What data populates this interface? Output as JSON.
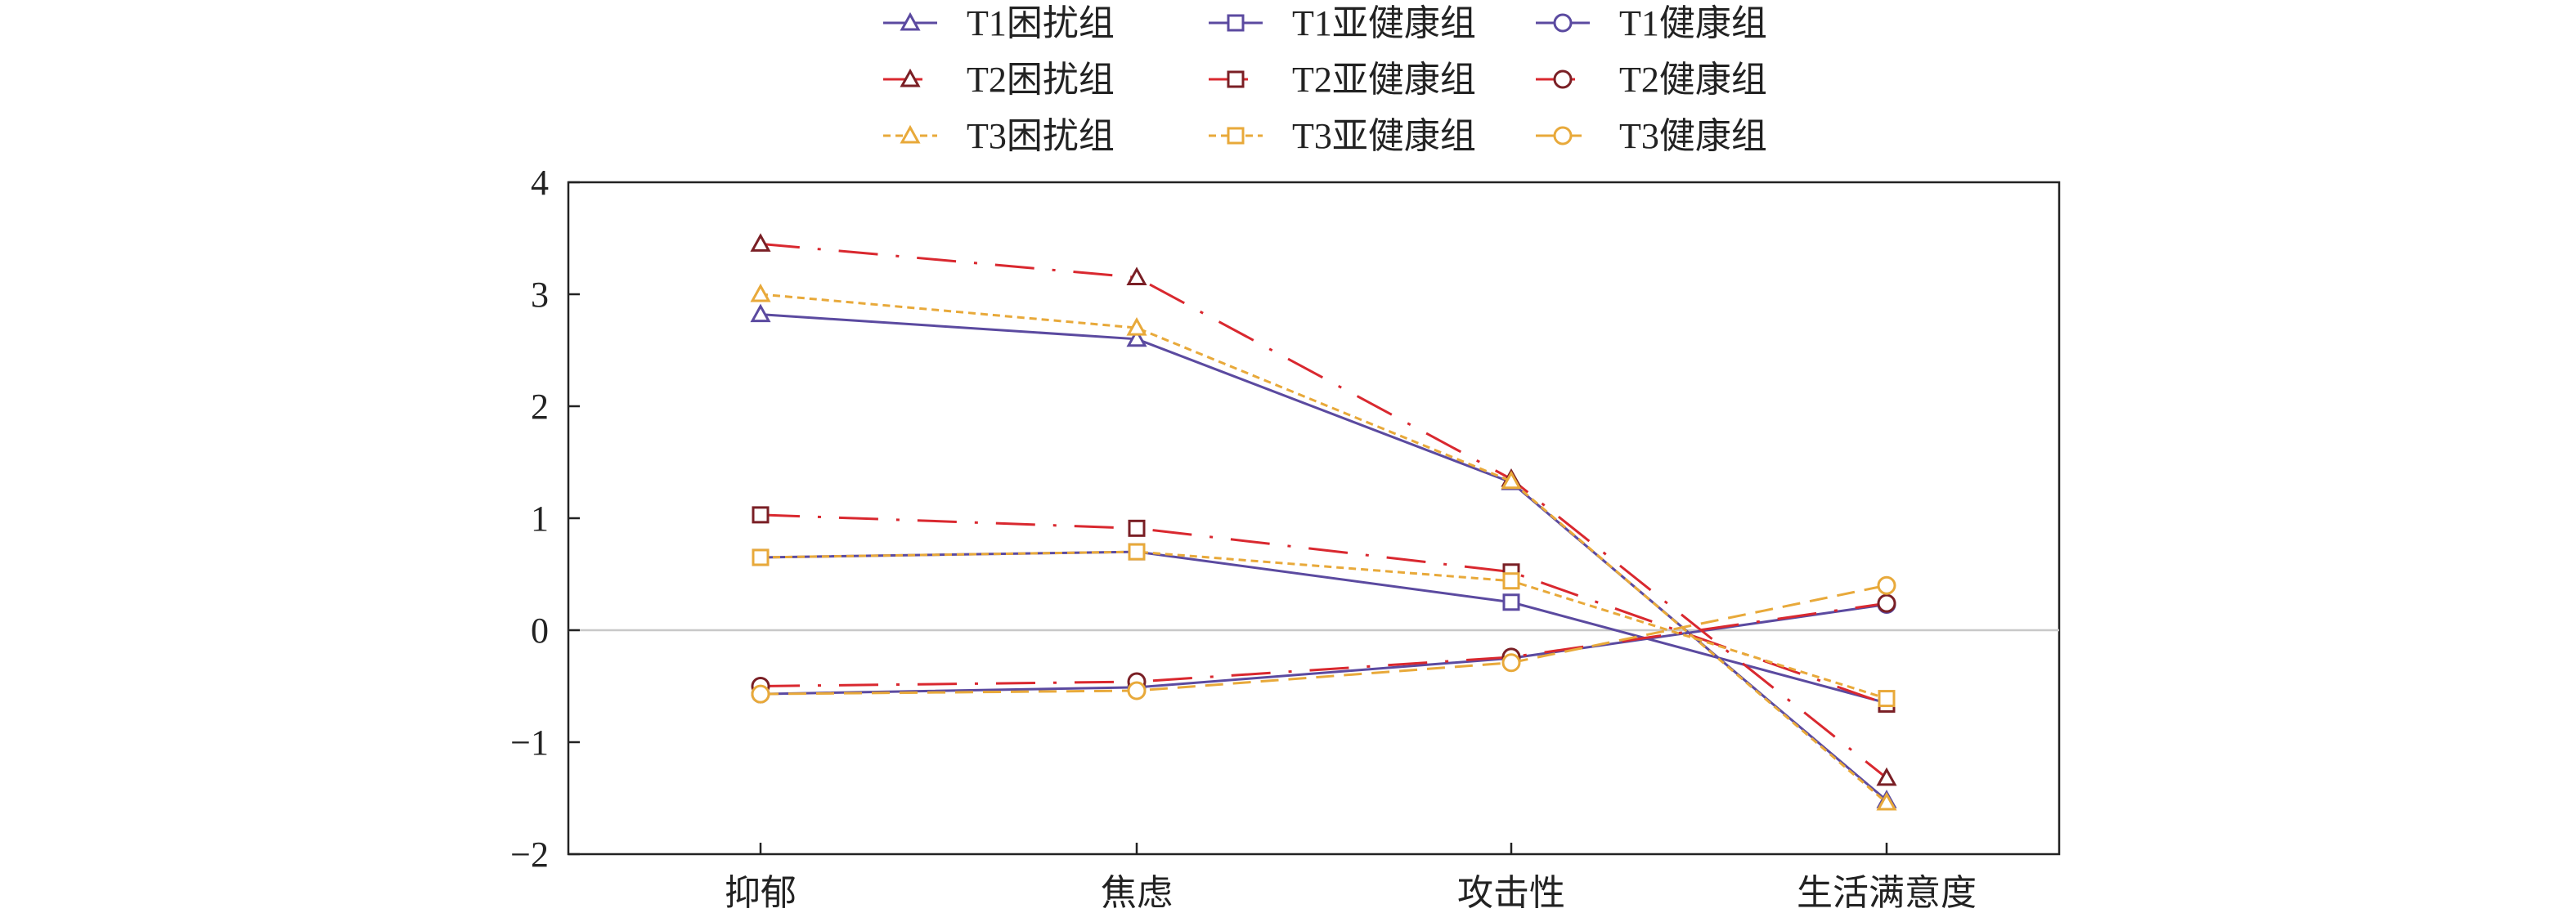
{
  "chart_data": {
    "type": "line",
    "title": "",
    "xlabel": "",
    "ylabel": "",
    "categories": [
      "抑郁",
      "焦虑",
      "攻击性",
      "生活满意度"
    ],
    "yticks": [
      "4",
      "3",
      "2",
      "1",
      "0",
      "−1",
      "−2"
    ],
    "ylim": [
      -2,
      4
    ],
    "grid": false,
    "zero_line": true,
    "legend_position": "top",
    "series": [
      {
        "name": "T1困扰组",
        "values": [
          2.82,
          2.6,
          1.32,
          -1.52
        ],
        "color": "#5b4aa0",
        "marker": "triangle",
        "dash": "solid"
      },
      {
        "name": "T1亚健康组",
        "values": [
          0.65,
          0.7,
          0.25,
          -0.65
        ],
        "color": "#5b4aa0",
        "marker": "square",
        "dash": "solid"
      },
      {
        "name": "T1健康组",
        "values": [
          -0.57,
          -0.51,
          -0.25,
          0.23
        ],
        "color": "#5b4aa0",
        "marker": "circle",
        "dash": "solid"
      },
      {
        "name": "T2困扰组",
        "values": [
          3.45,
          3.15,
          1.35,
          -1.32
        ],
        "color": "#d9282f",
        "marker": "triangle",
        "dash": "dashdot",
        "marker_color": "#7a1f25"
      },
      {
        "name": "T2亚健康组",
        "values": [
          1.03,
          0.91,
          0.52,
          -0.66
        ],
        "color": "#d9282f",
        "marker": "square",
        "dash": "dashdot",
        "marker_color": "#7a1f25"
      },
      {
        "name": "T2健康组",
        "values": [
          -0.5,
          -0.46,
          -0.24,
          0.24
        ],
        "color": "#d9282f",
        "marker": "circle",
        "dash": "dashdot",
        "marker_color": "#7a1f25"
      },
      {
        "name": "T3困扰组",
        "values": [
          3.0,
          2.7,
          1.33,
          -1.54
        ],
        "color": "#e8a93a",
        "marker": "triangle",
        "dash": "dotted"
      },
      {
        "name": "T3亚健康组",
        "values": [
          0.65,
          0.7,
          0.44,
          -0.61
        ],
        "color": "#e8a93a",
        "marker": "square",
        "dash": "dotted"
      },
      {
        "name": "T3健康组",
        "values": [
          -0.57,
          -0.54,
          -0.29,
          0.4
        ],
        "color": "#e8a93a",
        "marker": "circle",
        "dash": "dashed"
      }
    ]
  }
}
